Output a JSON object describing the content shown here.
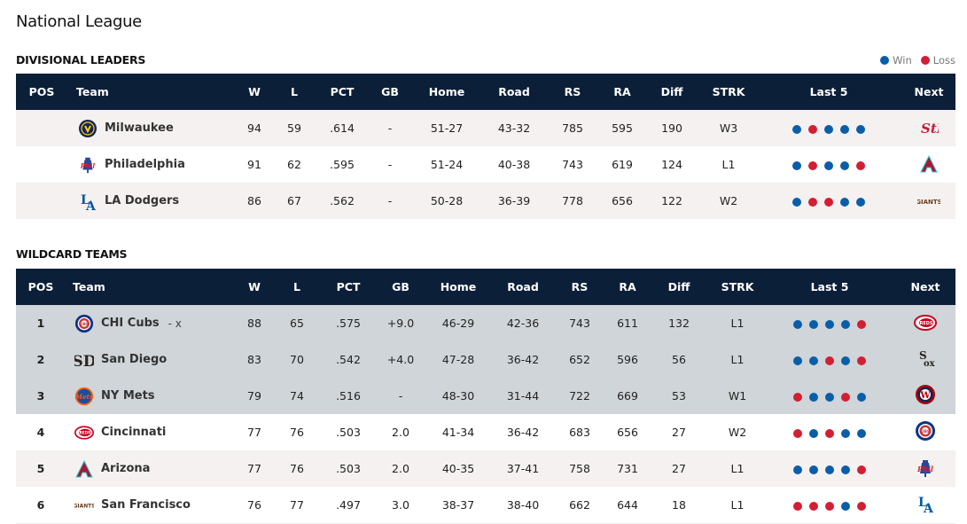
{
  "page_title": "National League",
  "legend": {
    "win_label": "Win",
    "loss_label": "Loss"
  },
  "colors": {
    "win": "#0a5ea8",
    "loss": "#d31f33",
    "header_bg": "#0c1f38",
    "playoff_row_bg": "#cfd5d9",
    "alt_row_bg": "#f4f1f0"
  },
  "columns": [
    "POS",
    "Team",
    "W",
    "L",
    "PCT",
    "GB",
    "Home",
    "Road",
    "RS",
    "RA",
    "Diff",
    "STRK",
    "Last 5",
    "Next"
  ],
  "divisional": {
    "heading": "DIVISIONAL LEADERS",
    "rows": [
      {
        "pos": "",
        "logo": "brewers-logo",
        "team": "Milwaukee",
        "clinch": "",
        "w": "94",
        "l": "59",
        "pct": ".614",
        "gb": "-",
        "home": "51-27",
        "road": "43-32",
        "rs": "785",
        "ra": "595",
        "diff": "190",
        "strk": "W3",
        "last5": [
          "W",
          "L",
          "W",
          "W",
          "W"
        ],
        "next": "cardinals-logo"
      },
      {
        "pos": "",
        "logo": "phillies-logo",
        "team": "Philadelphia",
        "clinch": "",
        "w": "91",
        "l": "62",
        "pct": ".595",
        "gb": "-",
        "home": "51-24",
        "road": "40-38",
        "rs": "743",
        "ra": "619",
        "diff": "124",
        "strk": "L1",
        "last5": [
          "W",
          "L",
          "W",
          "W",
          "L"
        ],
        "next": "diamondbacks-logo"
      },
      {
        "pos": "",
        "logo": "dodgers-logo",
        "team": "LA Dodgers",
        "clinch": "",
        "w": "86",
        "l": "67",
        "pct": ".562",
        "gb": "-",
        "home": "50-28",
        "road": "36-39",
        "rs": "778",
        "ra": "656",
        "diff": "122",
        "strk": "W2",
        "last5": [
          "W",
          "L",
          "L",
          "W",
          "W"
        ],
        "next": "giants-logo"
      }
    ]
  },
  "wildcard": {
    "heading": "WILDCARD TEAMS",
    "rows": [
      {
        "pos": "1",
        "logo": "cubs-logo",
        "team": "CHI Cubs",
        "clinch": "- x",
        "w": "88",
        "l": "65",
        "pct": ".575",
        "gb": "+9.0",
        "home": "46-29",
        "road": "42-36",
        "rs": "743",
        "ra": "611",
        "diff": "132",
        "strk": "L1",
        "last5": [
          "W",
          "W",
          "W",
          "W",
          "L"
        ],
        "next": "reds-logo"
      },
      {
        "pos": "2",
        "logo": "padres-logo",
        "team": "San Diego",
        "clinch": "",
        "w": "83",
        "l": "70",
        "pct": ".542",
        "gb": "+4.0",
        "home": "47-28",
        "road": "36-42",
        "rs": "652",
        "ra": "596",
        "diff": "56",
        "strk": "L1",
        "last5": [
          "W",
          "W",
          "L",
          "W",
          "L"
        ],
        "next": "white-sox-logo"
      },
      {
        "pos": "3",
        "logo": "mets-logo",
        "team": "NY Mets",
        "clinch": "",
        "w": "79",
        "l": "74",
        "pct": ".516",
        "gb": "-",
        "home": "48-30",
        "road": "31-44",
        "rs": "722",
        "ra": "669",
        "diff": "53",
        "strk": "W1",
        "last5": [
          "L",
          "W",
          "W",
          "L",
          "W"
        ],
        "next": "nationals-logo"
      },
      {
        "pos": "4",
        "logo": "reds-logo",
        "team": "Cincinnati",
        "clinch": "",
        "w": "77",
        "l": "76",
        "pct": ".503",
        "gb": "2.0",
        "home": "41-34",
        "road": "36-42",
        "rs": "683",
        "ra": "656",
        "diff": "27",
        "strk": "W2",
        "last5": [
          "L",
          "W",
          "L",
          "W",
          "W"
        ],
        "next": "cubs-logo"
      },
      {
        "pos": "5",
        "logo": "diamondbacks-logo",
        "team": "Arizona",
        "clinch": "",
        "w": "77",
        "l": "76",
        "pct": ".503",
        "gb": "2.0",
        "home": "40-35",
        "road": "37-41",
        "rs": "758",
        "ra": "731",
        "diff": "27",
        "strk": "L1",
        "last5": [
          "W",
          "W",
          "W",
          "W",
          "L"
        ],
        "next": "phillies-logo"
      },
      {
        "pos": "6",
        "logo": "giants-logo",
        "team": "San Francisco",
        "clinch": "",
        "w": "76",
        "l": "77",
        "pct": ".497",
        "gb": "3.0",
        "home": "38-37",
        "road": "38-40",
        "rs": "662",
        "ra": "644",
        "diff": "18",
        "strk": "L1",
        "last5": [
          "L",
          "L",
          "L",
          "W",
          "L"
        ],
        "next": "dodgers-logo"
      }
    ]
  }
}
